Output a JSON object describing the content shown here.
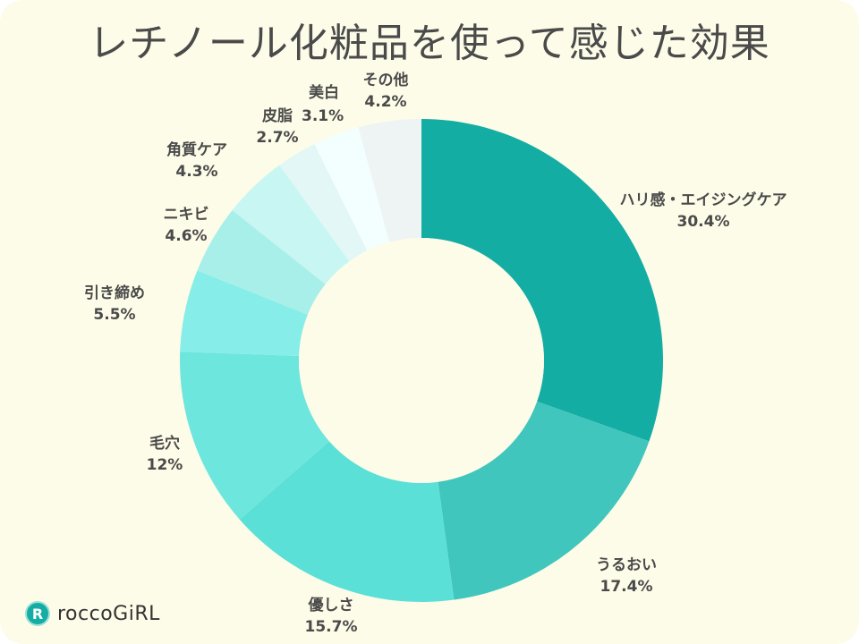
{
  "chart_data": {
    "type": "pie",
    "donut": true,
    "title": "レチノール化粧品を使って感じた効果",
    "start": "top",
    "direction": "clockwise",
    "categories": [
      "ハリ感・エイジングケア",
      "うるおい",
      "優しさ",
      "毛穴",
      "引き締め",
      "ニキビ",
      "角質ケア",
      "皮脂",
      "美白",
      "その他"
    ],
    "values": [
      30.4,
      17.4,
      15.7,
      12,
      5.5,
      4.6,
      4.3,
      2.7,
      3.1,
      4.2
    ],
    "labels": [
      "30.4%",
      "17.4%",
      "15.7%",
      "12%",
      "5.5%",
      "4.6%",
      "4.3%",
      "2.7%",
      "3.1%",
      "4.2%"
    ],
    "colors": [
      "#14ada4",
      "#40c6bd",
      "#5be0d8",
      "#6de6de",
      "#86ede8",
      "#a8efea",
      "#c8f6f3",
      "#e2f7f6",
      "#f3feff",
      "#eef4f4"
    ]
  },
  "brand": {
    "name": "roccoGiRL",
    "mark": "R"
  },
  "colors": {
    "background": "#fdfce8",
    "text": "#4a4a4a",
    "brand": "#14ada4"
  }
}
